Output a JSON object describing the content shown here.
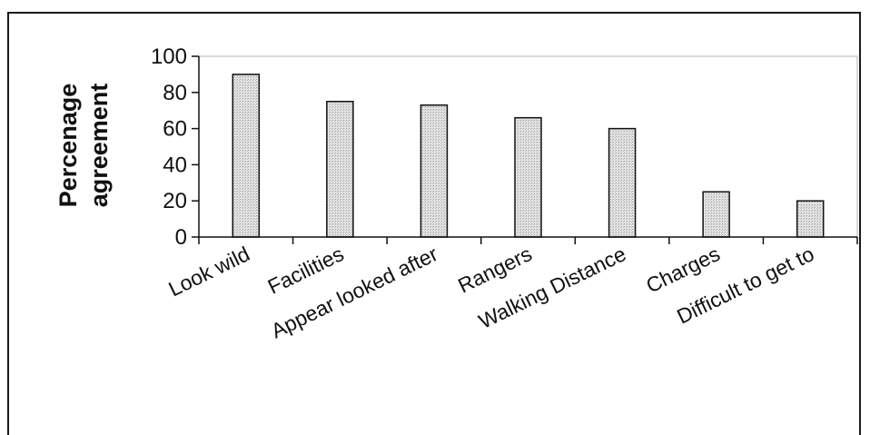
{
  "chart_data": {
    "type": "bar",
    "title": "",
    "xlabel": "",
    "ylabel": [
      "Percenage",
      "agreement"
    ],
    "categories": [
      "Look wild",
      "Facilities",
      "Appear looked after",
      "Rangers",
      "Walking Distance",
      "Charges",
      "Difficult to get to"
    ],
    "values": [
      90,
      75,
      73,
      66,
      60,
      25,
      20
    ],
    "ylim": [
      0,
      100
    ],
    "yticks": [
      "0",
      "20",
      "40",
      "60",
      "80",
      "100"
    ],
    "grid": false,
    "legend": "none",
    "bar_color": "#dcdcdc",
    "bar_stroke": "#111111"
  }
}
